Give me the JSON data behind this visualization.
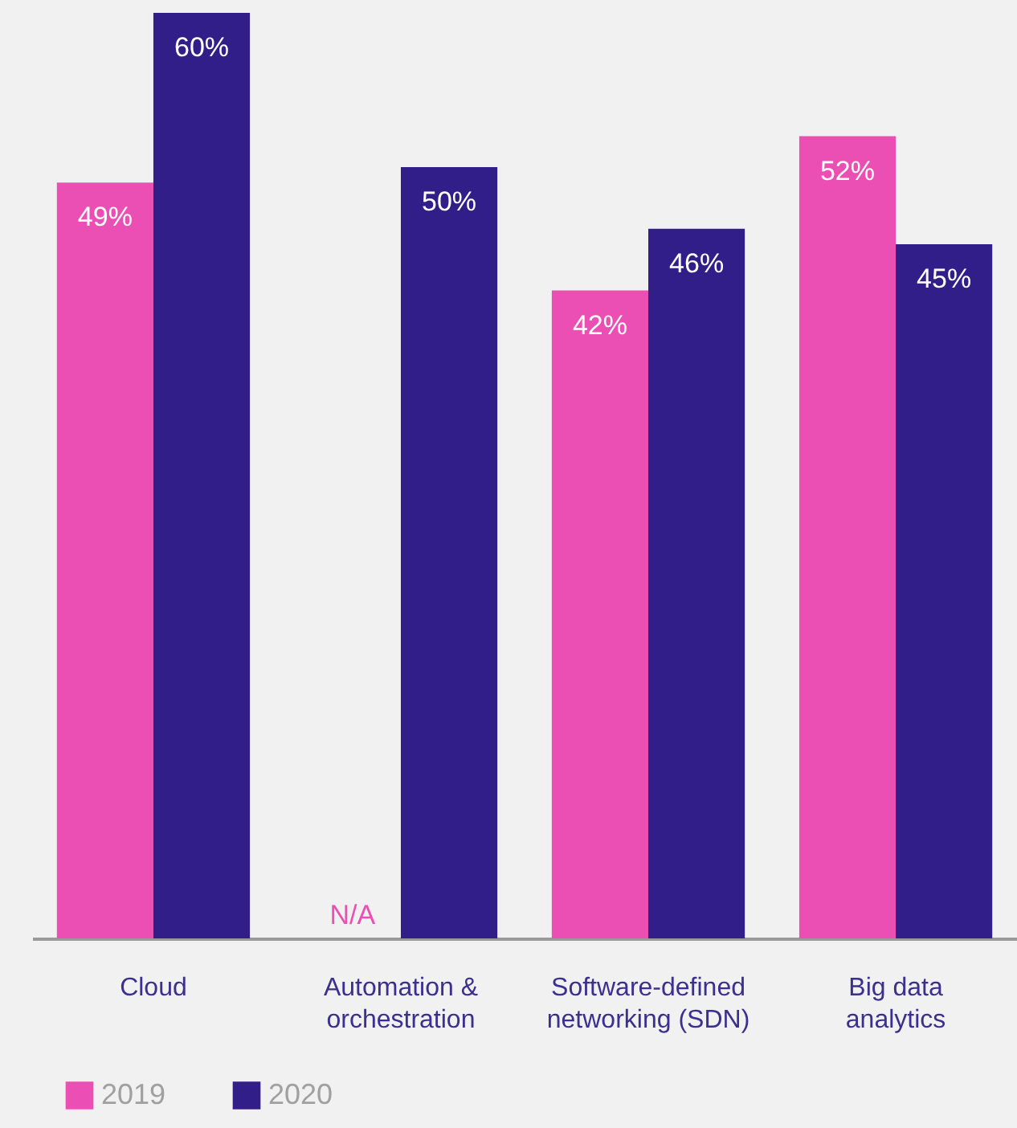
{
  "chart_data": {
    "type": "bar",
    "categories": [
      "Cloud",
      "Automation & orchestration",
      "Software-defined networking (SDN)",
      "Big data analytics"
    ],
    "series": [
      {
        "name": "2019",
        "color": "#ec4fb3",
        "values": [
          49,
          null,
          42,
          52
        ],
        "value_labels": [
          "49%",
          "N/A",
          "42%",
          "52%"
        ]
      },
      {
        "name": "2020",
        "color": "#321e88",
        "values": [
          60,
          50,
          46,
          45
        ],
        "value_labels": [
          "60%",
          "50%",
          "46%",
          "45%"
        ]
      }
    ],
    "legend": "bottom left",
    "grid": false
  }
}
